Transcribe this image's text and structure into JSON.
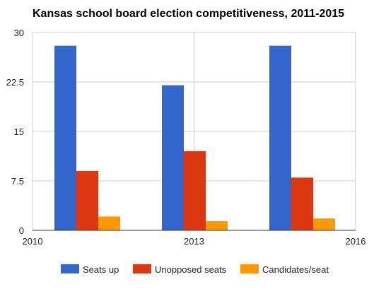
{
  "chart_data": {
    "type": "bar",
    "title": "Kansas school board election competitiveness, 2011-2015",
    "xlabel": "",
    "ylabel": "",
    "x": [
      2011,
      2013,
      2015
    ],
    "xlim": [
      2010,
      2016
    ],
    "xticks": [
      "2010",
      "2013",
      "2016"
    ],
    "ylim": [
      0,
      30
    ],
    "yticks": [
      "0",
      "7.5",
      "15",
      "22.5",
      "30"
    ],
    "grid": true,
    "legend_position": "bottom",
    "series": [
      {
        "name": "Seats up",
        "color": "#3366cc",
        "values": [
          28,
          22,
          28
        ]
      },
      {
        "name": "Unopposed seats",
        "color": "#dc3912",
        "values": [
          9,
          12,
          8
        ]
      },
      {
        "name": "Candidates/seat",
        "color": "#ff9900",
        "values": [
          2.1,
          1.4,
          1.8
        ]
      }
    ]
  }
}
